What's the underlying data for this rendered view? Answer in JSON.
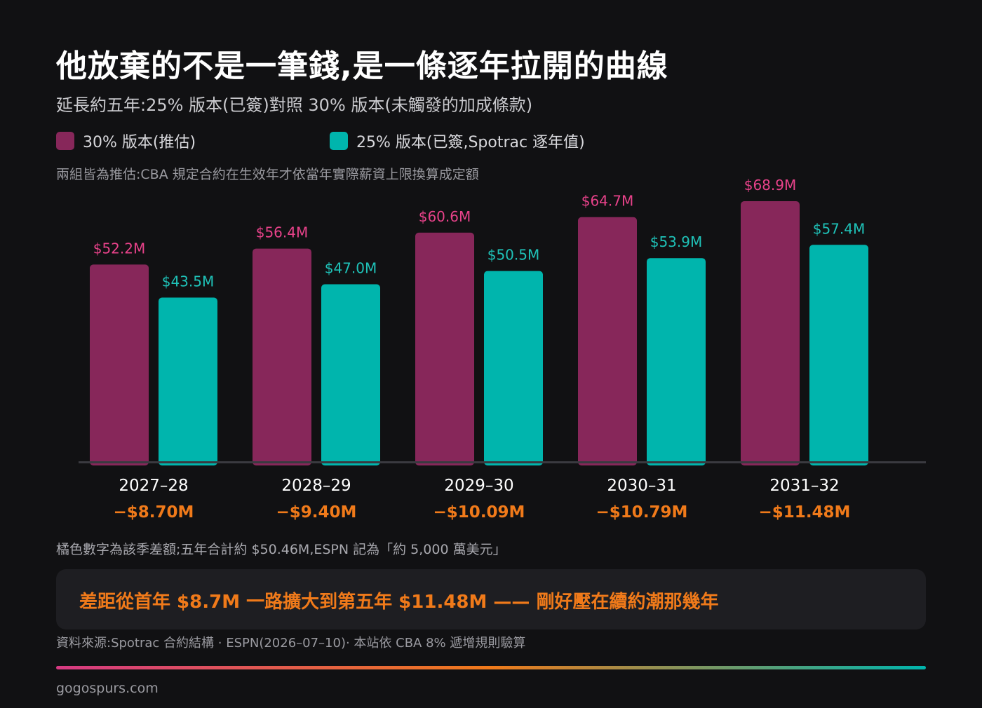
{
  "header": {
    "title": "他放棄的不是一筆錢,是一條逐年拉開的曲線",
    "subtitle": "延長約五年:25% 版本(已簽)對照 30% 版本(未觸發的加成條款)"
  },
  "legend": {
    "items": [
      {
        "label": "30% 版本(推估)",
        "color": "#87275a"
      },
      {
        "label": "25% 版本(已簽,Spotrac 逐年值)",
        "color": "#00b5ad"
      }
    ]
  },
  "note": "兩組皆為推估:CBA 規定合約在生效年才依當年實際薪資上限換算成定額",
  "chart_data": {
    "type": "bar",
    "categories": [
      "2027–28",
      "2028–29",
      "2029–30",
      "2030–31",
      "2031–32"
    ],
    "series": [
      {
        "name": "30% 版本(推估)",
        "values": [
          52.2,
          56.4,
          60.6,
          64.7,
          68.9
        ],
        "labels": [
          "$52.2M",
          "$56.4M",
          "$60.6M",
          "$64.7M",
          "$68.9M"
        ],
        "color": "#87275a",
        "label_color": "#e8428a"
      },
      {
        "name": "25% 版本(已簽,Spotrac 逐年值)",
        "values": [
          43.5,
          47.0,
          50.5,
          53.9,
          57.4
        ],
        "labels": [
          "$43.5M",
          "$47.0M",
          "$50.5M",
          "$53.9M",
          "$57.4M"
        ],
        "color": "#00b5ad",
        "label_color": "#1fc2b8"
      }
    ],
    "differences": [
      "−$8.70M",
      "−$9.40M",
      "−$10.09M",
      "−$10.79M",
      "−$11.48M"
    ],
    "difference_color": "#f07a1a",
    "ylim": [
      0,
      72
    ],
    "grid": false,
    "legend_position": "top-left"
  },
  "footnote": "橘色數字為該季差額;五年合計約 $50.46M,ESPN 記為「約 5,000 萬美元」",
  "callout": "差距從首年 $8.7M 一路擴大到第五年 $11.48M —— 剛好壓在續約潮那幾年",
  "source": "資料來源:Spotrac 合約結構 · ESPN(2026–07–10)· 本站依 CBA 8% 遞增規則驗算",
  "site": "gogospurs.com"
}
